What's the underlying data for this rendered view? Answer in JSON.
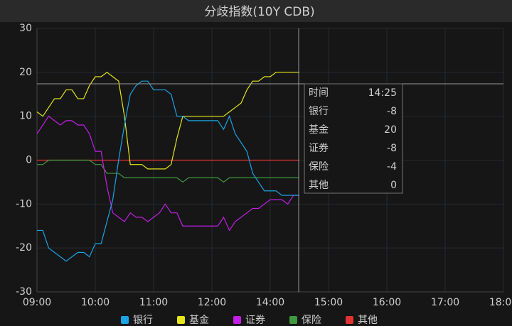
{
  "chart_data": {
    "type": "line",
    "title": "分歧指数(10Y CDB)",
    "x": [
      0,
      0.1,
      0.2,
      0.3,
      0.4,
      0.5,
      0.6,
      0.7,
      0.8,
      0.9,
      1,
      1.1,
      1.2,
      1.3,
      1.4,
      1.5,
      1.6,
      1.7,
      1.8,
      1.9,
      2,
      2.1,
      2.2,
      2.3,
      2.4,
      2.5,
      2.6,
      2.7,
      2.8,
      2.9,
      3,
      3.1,
      3.2,
      3.3,
      3.4,
      3.5,
      3.6,
      3.7,
      3.8,
      3.9,
      4,
      4.1,
      4.2,
      4.3,
      4.4,
      4.5
    ],
    "series": [
      {
        "name": "银行",
        "color": "#1ba3e6",
        "values": [
          -16,
          -16,
          -20,
          -21,
          -22,
          -23,
          -22,
          -21,
          -21,
          -22,
          -19,
          -19,
          -14,
          -9,
          0,
          8,
          15,
          17,
          18,
          18,
          16,
          16,
          16,
          15,
          10,
          10,
          9,
          9,
          9,
          9,
          9,
          9,
          7,
          10,
          6,
          4,
          2,
          -3,
          -5,
          -7,
          -7,
          -7,
          -8,
          -8,
          -8,
          -8
        ]
      },
      {
        "name": "基金",
        "color": "#e6e61b",
        "values": [
          11,
          10,
          12,
          14,
          14,
          16,
          16,
          14,
          14,
          17,
          19,
          19,
          20,
          19,
          18,
          10,
          -1,
          -1,
          -1,
          -2,
          -2,
          -2,
          -2,
          -1,
          5,
          10,
          10,
          10,
          10,
          10,
          10,
          10,
          10,
          11,
          12,
          13,
          16,
          18,
          18,
          19,
          19,
          20,
          20,
          20,
          20,
          20
        ]
      },
      {
        "name": "证券",
        "color": "#c21ee6",
        "values": [
          6,
          8,
          10,
          9,
          8,
          9,
          9,
          8,
          8,
          6,
          2,
          2,
          -6,
          -12,
          -13,
          -14,
          -12,
          -13,
          -13,
          -14,
          -13,
          -12,
          -10,
          -12,
          -12,
          -15,
          -15,
          -15,
          -15,
          -15,
          -15,
          -15,
          -13,
          -16,
          -14,
          -13,
          -12,
          -11,
          -11,
          -10,
          -9,
          -9,
          -9,
          -10,
          -8,
          -8
        ]
      },
      {
        "name": "保险",
        "color": "#3f9a3f",
        "values": [
          -1,
          -1,
          0,
          0,
          0,
          0,
          0,
          0,
          0,
          0,
          -1,
          -1,
          -3,
          -3,
          -3,
          -4,
          -4,
          -4,
          -4,
          -4,
          -4,
          -4,
          -4,
          -4,
          -4,
          -5,
          -4,
          -4,
          -4,
          -4,
          -4,
          -4,
          -5,
          -4,
          -4,
          -4,
          -4,
          -4,
          -4,
          -4,
          -4,
          -4,
          -4,
          -4,
          -4,
          -4
        ]
      },
      {
        "name": "其他",
        "color": "#e03333",
        "values": [
          0,
          0,
          0,
          0,
          0,
          0,
          0,
          0,
          0,
          0,
          0,
          0,
          0,
          0,
          0,
          0,
          0,
          0,
          0,
          0,
          0,
          0,
          0,
          0,
          0,
          0,
          0,
          0,
          0,
          0,
          0,
          0,
          0,
          0,
          0,
          0,
          0,
          0,
          0,
          0,
          0,
          0,
          0,
          0,
          0,
          0
        ]
      }
    ],
    "xlim": [
      0,
      8
    ],
    "xticks": [
      {
        "value": 0,
        "label": "09:00"
      },
      {
        "value": 1,
        "label": "10:00"
      },
      {
        "value": 2,
        "label": "11:00"
      },
      {
        "value": 3,
        "label": "12:00"
      },
      {
        "value": 4,
        "label": "14:00"
      },
      {
        "value": 5,
        "label": "15:00"
      },
      {
        "value": 6,
        "label": "16:00"
      },
      {
        "value": 7,
        "label": "17:00"
      },
      {
        "value": 8,
        "label": "18:00"
      }
    ],
    "ylim": [
      -30,
      30
    ],
    "yticks": [
      -30,
      -20,
      -10,
      0,
      10,
      20,
      30
    ],
    "grid": true,
    "tooltip": {
      "rows": [
        [
          "时间",
          "14:25"
        ],
        [
          "银行",
          -8
        ],
        [
          "基金",
          20
        ],
        [
          "证券",
          -8
        ],
        [
          "保险",
          -4
        ],
        [
          "其他",
          0
        ]
      ]
    }
  }
}
